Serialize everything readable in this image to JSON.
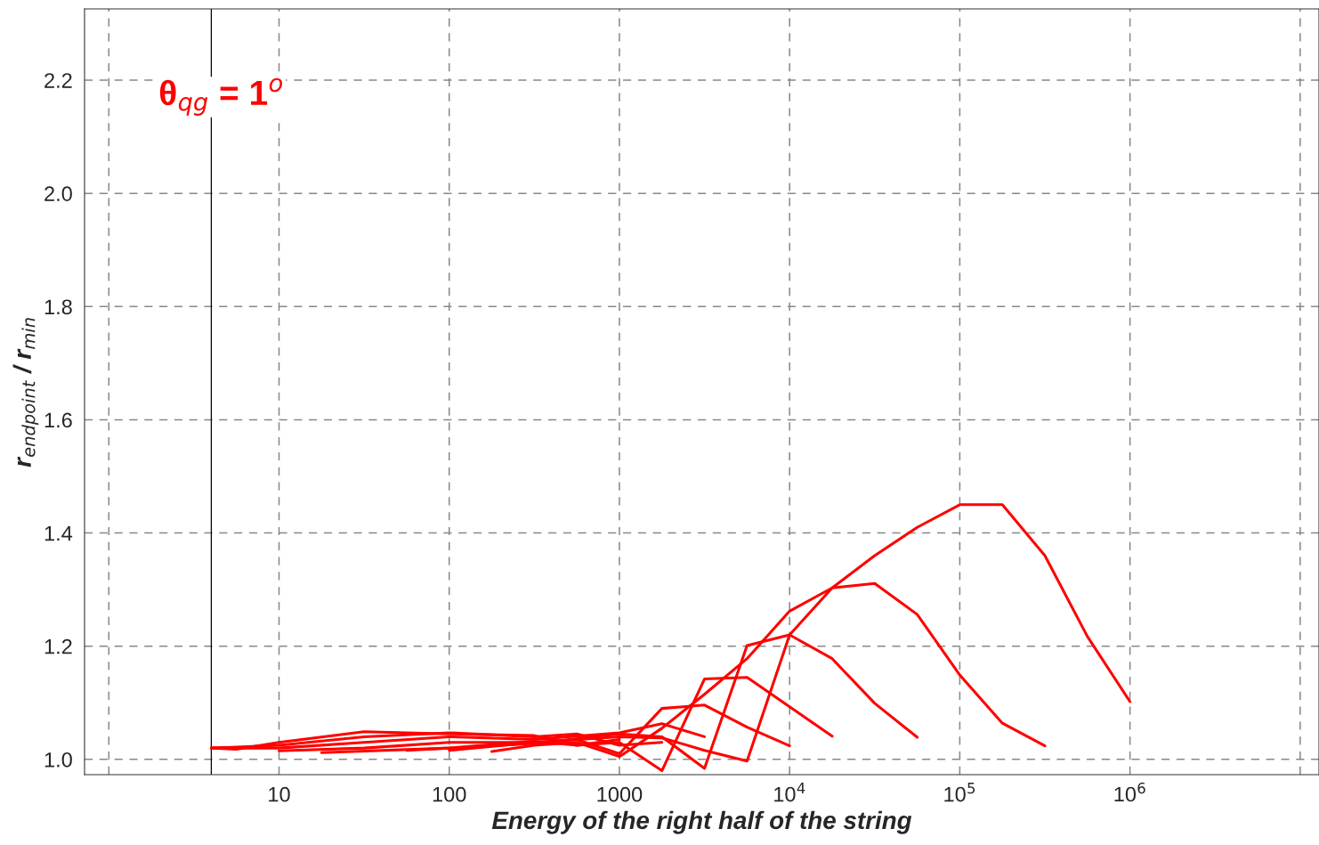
{
  "chart_data": {
    "type": "line",
    "xlabel": "Energy of the right half of the string",
    "ylabel": "r$_{endpoint}$ / r$_{min}$",
    "annotations": [
      "θ$_{qg}$ = 1$^{o}$"
    ],
    "log": "x",
    "grid": true,
    "line_style": "solid",
    "marker": "none",
    "xlim": [
      0.72,
      12900000
    ],
    "ylim": [
      0.973,
      2.326
    ],
    "xticks": [
      {
        "value": 1,
        "label": null
      },
      10,
      100,
      1000,
      {
        "value": 10000,
        "label": "10$^{4}$"
      },
      {
        "value": 100000,
        "label": "10$^{5}$"
      },
      {
        "value": 1000000,
        "label": "10$^{6}$"
      },
      {
        "value": 10000000,
        "label": null
      }
    ],
    "yticks": [
      {
        "value": 1.0,
        "label": "1.0"
      },
      1.2,
      1.4,
      1.6,
      1.8,
      {
        "value": 2.0,
        "label": "2.0"
      },
      2.2
    ],
    "ref_lines": [
      {
        "axis": "x",
        "value": 4,
        "color": "#000000",
        "line_style": "solid"
      }
    ],
    "series": [
      {
        "color": "#ff0000",
        "x": [
          177.8,
          316.2,
          562.3,
          1000,
          1778,
          3162,
          5623,
          10000,
          17783,
          31623,
          56234,
          100000,
          177828,
          316228,
          562341,
          1000000
        ],
        "values": [
          1.014,
          1.025,
          1.03,
          1.005,
          1.055,
          1.115,
          1.178,
          1.262,
          1.303,
          1.36,
          1.41,
          1.45,
          1.45,
          1.36,
          1.217,
          1.102
        ]
      },
      {
        "color": "#ff0000",
        "x": [
          100,
          316.2,
          1000,
          1778,
          3162,
          5623,
          10000,
          17783,
          31623,
          56234,
          100000,
          177828,
          316228
        ],
        "values": [
          1.016,
          1.03,
          1.04,
          1.038,
          1.016,
          0.997,
          1.22,
          1.303,
          1.311,
          1.256,
          1.149,
          1.064,
          1.024
        ]
      },
      {
        "color": "#ff0000",
        "x": [
          56.23,
          100,
          316.2,
          1000,
          1778,
          3162,
          5623,
          10000,
          17783,
          31623,
          56234
        ],
        "values": [
          1.016,
          1.02,
          1.028,
          1.045,
          1.04,
          0.984,
          1.201,
          1.22,
          1.178,
          1.099,
          1.039
        ]
      },
      {
        "color": "#ff0000",
        "x": [
          17.78,
          100,
          316.2,
          562.3,
          1000,
          1778,
          3162,
          5623,
          10000,
          17783
        ],
        "values": [
          1.012,
          1.02,
          1.032,
          1.025,
          1.03,
          0.98,
          1.142,
          1.145,
          1.093,
          1.041
        ]
      },
      {
        "color": "#ff0000",
        "x": [
          10,
          31.62,
          100,
          316.2,
          562.3,
          1000,
          1778,
          3162,
          5623,
          10000
        ],
        "values": [
          1.015,
          1.02,
          1.03,
          1.03,
          1.035,
          1.01,
          1.09,
          1.096,
          1.057,
          1.024
        ]
      },
      {
        "color": "#ff0000",
        "x": [
          4,
          10,
          31.62,
          100,
          316.2,
          1000,
          1778,
          3162
        ],
        "values": [
          1.02,
          1.02,
          1.03,
          1.04,
          1.035,
          1.047,
          1.063,
          1.04
        ]
      },
      {
        "color": "#ff0000",
        "x": [
          4,
          10,
          31.62,
          100,
          316.2,
          562.3,
          1000,
          1778
        ],
        "values": [
          1.02,
          1.025,
          1.04,
          1.047,
          1.04,
          1.045,
          1.025,
          1.03
        ]
      },
      {
        "color": "#ff0000",
        "x": [
          4,
          5.62,
          10,
          31.62,
          100,
          316.2,
          562.3,
          1000
        ],
        "values": [
          1.02,
          1.018,
          1.03,
          1.049,
          1.045,
          1.042,
          1.025,
          1.035
        ]
      }
    ]
  }
}
